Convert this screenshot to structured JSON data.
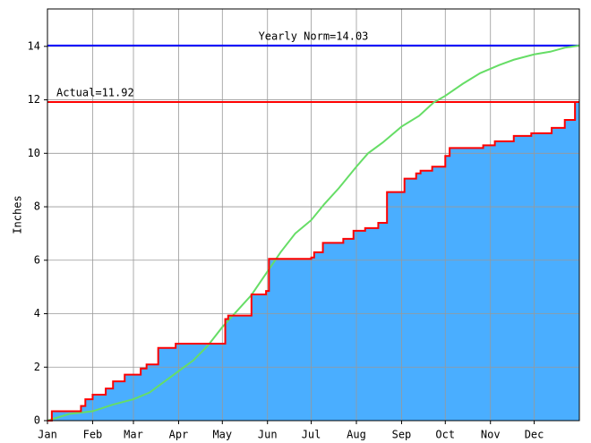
{
  "chart_data": {
    "type": "line",
    "y_label": "Inches",
    "xlim": [
      0,
      365
    ],
    "ylim": [
      0,
      15.4
    ],
    "xticks": [
      {
        "value": 0,
        "label": "Jan"
      },
      {
        "value": 31,
        "label": "Feb"
      },
      {
        "value": 59,
        "label": "Mar"
      },
      {
        "value": 90,
        "label": "Apr"
      },
      {
        "value": 120,
        "label": "May"
      },
      {
        "value": 151,
        "label": "Jun"
      },
      {
        "value": 181,
        "label": "Jul"
      },
      {
        "value": 212,
        "label": "Aug"
      },
      {
        "value": 243,
        "label": "Sep"
      },
      {
        "value": 273,
        "label": "Oct"
      },
      {
        "value": 304,
        "label": "Nov"
      },
      {
        "value": 334,
        "label": "Dec"
      }
    ],
    "yticks": [
      0,
      2,
      4,
      6,
      8,
      10,
      12,
      14
    ],
    "grid": true,
    "series": [
      {
        "color": "#ff0000",
        "fill": "#4aaeff",
        "step": true,
        "x": [
          0,
          3,
          23,
          26,
          31,
          40,
          45,
          53,
          64,
          68,
          76,
          88,
          122,
          124,
          140,
          150,
          152,
          181,
          183,
          189,
          203,
          210,
          218,
          227,
          233,
          245,
          253,
          256,
          264,
          273,
          276,
          299,
          307,
          320,
          332,
          346,
          355,
          362,
          365
        ],
        "values": [
          0,
          0.35,
          0.55,
          0.8,
          0.97,
          1.2,
          1.47,
          1.72,
          1.95,
          2.1,
          2.72,
          2.88,
          3.8,
          3.93,
          4.72,
          4.85,
          6.05,
          6.1,
          6.3,
          6.65,
          6.8,
          7.1,
          7.2,
          7.4,
          8.55,
          9.05,
          9.25,
          9.35,
          9.5,
          9.9,
          10.2,
          10.3,
          10.45,
          10.65,
          10.75,
          10.95,
          11.25,
          11.92,
          11.92
        ]
      },
      {
        "color": "#66dd66",
        "step": false,
        "x": [
          0,
          15,
          31,
          45,
          59,
          70,
          80,
          90,
          100,
          110,
          120,
          130,
          140,
          150,
          160,
          170,
          181,
          190,
          200,
          212,
          220,
          230,
          243,
          255,
          265,
          273,
          285,
          297,
          310,
          320,
          334,
          345,
          355,
          365
        ],
        "values": [
          0,
          0.25,
          0.35,
          0.6,
          0.8,
          1.05,
          1.45,
          1.85,
          2.25,
          2.8,
          3.5,
          4.1,
          4.7,
          5.5,
          6.3,
          7.0,
          7.5,
          8.1,
          8.7,
          9.5,
          10.0,
          10.4,
          11.0,
          11.4,
          11.9,
          12.15,
          12.6,
          13.0,
          13.3,
          13.5,
          13.7,
          13.8,
          13.95,
          14.03
        ]
      }
    ],
    "reference_lines": [
      {
        "value": 14.03,
        "label": "Yearly Norm=14.03",
        "color": "#0000ff"
      },
      {
        "value": 11.92,
        "label": "Actual=11.92",
        "color": "#ff0000"
      }
    ]
  }
}
